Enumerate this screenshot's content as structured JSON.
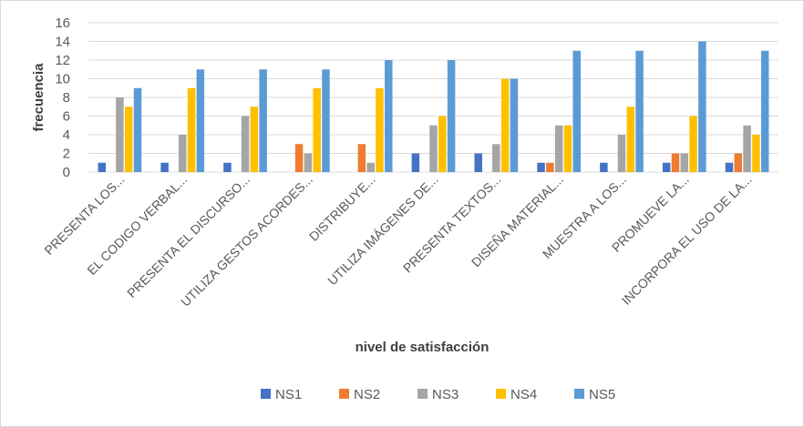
{
  "chart_data": {
    "type": "bar",
    "xlabel": "nivel de satisfacción",
    "ylabel": "frecuencia",
    "ylim": [
      0,
      16
    ],
    "yticks": [
      0,
      2,
      4,
      6,
      8,
      10,
      12,
      14,
      16
    ],
    "grid": true,
    "legend_position": "bottom",
    "categories": [
      "PRESENTA LOS...",
      "EL CODIGO VERBAL...",
      "PRESENTA EL DISCURSO...",
      "UTILIZA GESTOS ACORDES...",
      "DISTRIBUYE...",
      "UTILIZA IMÁGENES DE...",
      "PRESENTA TEXTOS...",
      "DISEÑA MATERIAL...",
      "MUESTRA A LOS...",
      "PROMUEVE LA...",
      "INCORPORA EL USO DE LA..."
    ],
    "series": [
      {
        "name": "NS1",
        "color": "#4472C4",
        "values": [
          1,
          1,
          1,
          0,
          0,
          2,
          2,
          1,
          1,
          1,
          1
        ]
      },
      {
        "name": "NS2",
        "color": "#ED7D31",
        "values": [
          0,
          0,
          0,
          3,
          3,
          0,
          0,
          1,
          0,
          2,
          2
        ]
      },
      {
        "name": "NS3",
        "color": "#A5A5A5",
        "values": [
          8,
          4,
          6,
          2,
          1,
          5,
          3,
          5,
          4,
          2,
          5
        ]
      },
      {
        "name": "NS4",
        "color": "#FFC000",
        "values": [
          7,
          9,
          7,
          9,
          9,
          6,
          10,
          5,
          7,
          6,
          4
        ]
      },
      {
        "name": "NS5",
        "color": "#5B9BD5",
        "values": [
          9,
          11,
          11,
          11,
          12,
          12,
          10,
          13,
          13,
          14,
          13
        ]
      }
    ]
  }
}
